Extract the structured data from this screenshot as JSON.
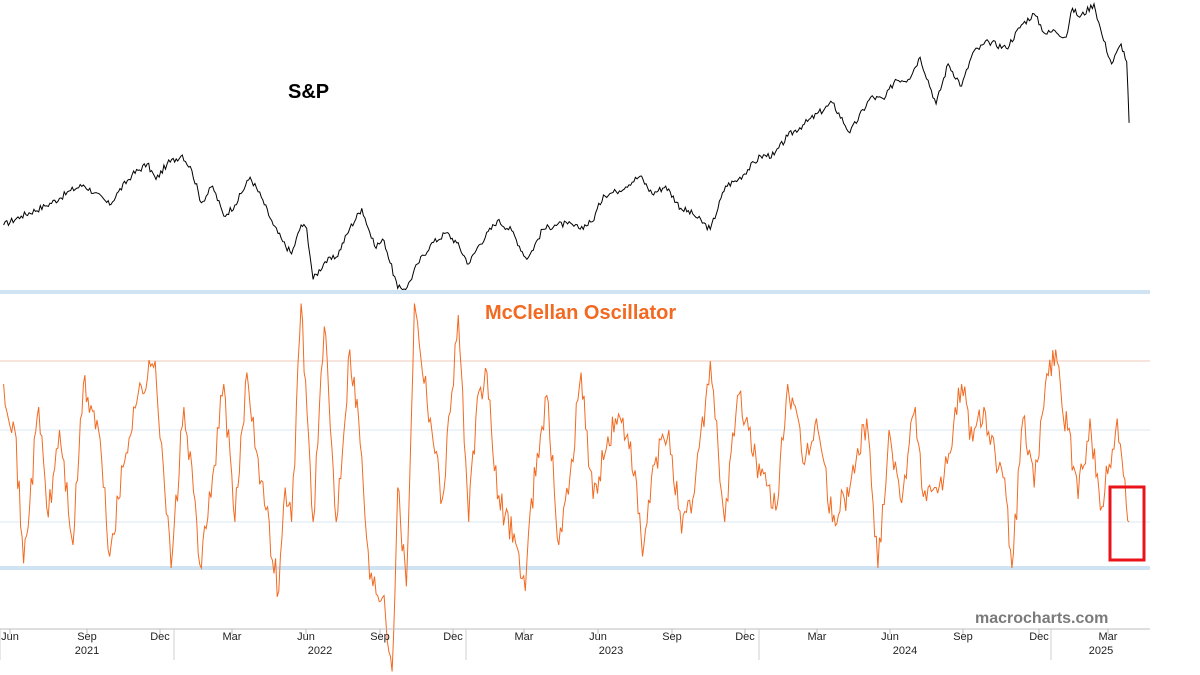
{
  "chart_data": [
    {
      "type": "line",
      "title": "S&P",
      "series": [
        {
          "name": "S&P",
          "color": "#000000",
          "x": [
            "2021-05-24",
            "2021-06-15",
            "2021-07-15",
            "2021-08-02",
            "2021-08-16",
            "2021-09-01",
            "2021-09-15",
            "2021-10-04",
            "2021-10-15",
            "2021-11-01",
            "2021-11-20",
            "2021-12-01",
            "2021-12-15",
            "2022-01-03",
            "2022-01-15",
            "2022-01-27",
            "2022-02-10",
            "2022-02-24",
            "2022-03-10",
            "2022-03-29",
            "2022-04-12",
            "2022-04-27",
            "2022-05-09",
            "2022-05-20",
            "2022-06-01",
            "2022-06-08",
            "2022-06-16",
            "2022-07-01",
            "2022-07-15",
            "2022-08-01",
            "2022-08-16",
            "2022-09-01",
            "2022-09-13",
            "2022-09-30",
            "2022-10-12",
            "2022-10-25",
            "2022-11-10",
            "2022-11-30",
            "2022-12-13",
            "2022-12-28",
            "2023-01-10",
            "2023-02-02",
            "2023-02-20",
            "2023-03-09",
            "2023-03-13",
            "2023-03-31",
            "2023-04-15",
            "2023-05-01",
            "2023-05-15",
            "2023-06-01",
            "2023-06-15",
            "2023-07-01",
            "2023-07-31",
            "2023-08-15",
            "2023-09-01",
            "2023-09-20",
            "2023-10-05",
            "2023-10-27",
            "2023-11-15",
            "2023-12-01",
            "2023-12-29",
            "2024-01-15",
            "2024-02-01",
            "2024-02-20",
            "2024-03-28",
            "2024-04-19",
            "2024-05-15",
            "2024-06-01",
            "2024-06-15",
            "2024-07-01",
            "2024-07-16",
            "2024-08-05",
            "2024-08-20",
            "2024-09-06",
            "2024-09-20",
            "2024-10-10",
            "2024-11-01",
            "2024-11-20",
            "2024-12-06",
            "2024-12-20",
            "2025-01-01",
            "2025-01-15",
            "2025-01-23",
            "2025-02-01",
            "2025-02-19",
            "2025-03-01",
            "2025-03-13",
            "2025-03-25",
            "2025-04-01",
            "2025-04-04"
          ],
          "values": [
            4150,
            4230,
            4320,
            4390,
            4460,
            4510,
            4440,
            4330,
            4450,
            4600,
            4700,
            4560,
            4700,
            4780,
            4640,
            4350,
            4500,
            4230,
            4330,
            4580,
            4400,
            4150,
            4000,
            3890,
            4150,
            4120,
            3660,
            3820,
            3860,
            4120,
            4300,
            3960,
            4010,
            3580,
            3590,
            3800,
            3970,
            4080,
            3990,
            3800,
            3970,
            4190,
            4100,
            3860,
            3860,
            4110,
            4150,
            4160,
            4120,
            4180,
            4420,
            4450,
            4590,
            4430,
            4500,
            4300,
            4250,
            4110,
            4500,
            4560,
            4770,
            4780,
            4950,
            5050,
            5250,
            4980,
            5300,
            5280,
            5460,
            5460,
            5660,
            5240,
            5600,
            5400,
            5700,
            5800,
            5740,
            5950,
            6050,
            5870,
            5900,
            5840,
            6100,
            6020,
            6140,
            5860,
            5600,
            5780,
            5620,
            5070
          ]
        }
      ]
    },
    {
      "type": "line",
      "title": "McClellan Oscillator",
      "xticks": [
        "Jun",
        "Sep",
        "Dec",
        "Mar",
        "Jun",
        "Sep",
        "Dec",
        "Mar",
        "Jun",
        "Sep",
        "Dec",
        "Mar",
        "Jun",
        "Sep",
        "Dec",
        "Mar"
      ],
      "years": [
        "2021",
        "2022",
        "2023",
        "2024",
        "2025"
      ],
      "ylim": [
        -100,
        100
      ],
      "reference_lines": [
        -50,
        -30,
        10,
        40,
        70
      ],
      "series": [
        {
          "name": "McClellan Oscillator",
          "color": "#f26a21",
          "x": [
            "2021-05-24",
            "2021-06-07",
            "2021-06-18",
            "2021-07-07",
            "2021-07-19",
            "2021-08-02",
            "2021-08-19",
            "2021-09-01",
            "2021-09-20",
            "2021-10-04",
            "2021-10-15",
            "2021-11-03",
            "2021-11-30",
            "2021-12-10",
            "2021-12-20",
            "2022-01-05",
            "2022-01-27",
            "2022-02-10",
            "2022-02-24",
            "2022-03-10",
            "2022-03-25",
            "2022-04-12",
            "2022-05-04",
            "2022-05-12",
            "2022-05-20",
            "2022-06-01",
            "2022-06-16",
            "2022-06-30",
            "2022-07-15",
            "2022-08-01",
            "2022-08-12",
            "2022-08-26",
            "2022-09-13",
            "2022-09-23",
            "2022-09-30",
            "2022-10-11",
            "2022-10-21",
            "2022-11-10",
            "2022-11-25",
            "2022-12-15",
            "2022-12-28",
            "2023-01-06",
            "2023-01-20",
            "2023-02-02",
            "2023-02-23",
            "2023-03-09",
            "2023-03-13",
            "2023-03-24",
            "2023-04-05",
            "2023-04-20",
            "2023-05-04",
            "2023-05-18",
            "2023-06-02",
            "2023-06-15",
            "2023-06-30",
            "2023-07-19",
            "2023-08-03",
            "2023-08-18",
            "2023-09-05",
            "2023-09-21",
            "2023-10-05",
            "2023-10-27",
            "2023-11-14",
            "2023-11-30",
            "2023-12-14",
            "2023-12-29",
            "2024-01-17",
            "2024-02-01",
            "2024-02-22",
            "2024-03-08",
            "2024-03-28",
            "2024-04-12",
            "2024-04-19",
            "2024-05-10",
            "2024-05-24",
            "2024-06-07",
            "2024-06-21",
            "2024-07-10",
            "2024-07-18",
            "2024-08-05",
            "2024-08-15",
            "2024-09-06",
            "2024-09-20",
            "2024-10-04",
            "2024-10-18",
            "2024-11-01",
            "2024-11-08",
            "2024-11-22",
            "2024-12-06",
            "2024-12-20",
            "2025-01-02",
            "2025-01-10",
            "2025-01-17",
            "2025-01-30",
            "2025-02-14",
            "2025-02-27",
            "2025-03-10",
            "2025-03-20",
            "2025-03-28",
            "2025-04-04"
          ],
          "values": [
            30,
            10,
            -48,
            20,
            -28,
            10,
            -40,
            30,
            10,
            -45,
            -20,
            20,
            40,
            -5,
            -50,
            20,
            -50,
            -10,
            30,
            -30,
            35,
            -12,
            -60,
            -15,
            -30,
            65,
            -30,
            55,
            -30,
            45,
            15,
            -55,
            -62,
            -95,
            -15,
            -58,
            65,
            15,
            -20,
            60,
            -30,
            15,
            35,
            -20,
            -35,
            -60,
            -35,
            0,
            25,
            -40,
            -10,
            35,
            -20,
            -3,
            15,
            5,
            -45,
            -5,
            10,
            -35,
            -20,
            40,
            -30,
            25,
            10,
            -10,
            -25,
            30,
            -5,
            15,
            -30,
            -20,
            -15,
            15,
            -50,
            10,
            -20,
            20,
            -15,
            -15,
            -10,
            30,
            5,
            20,
            0,
            -20,
            -50,
            15,
            -15,
            30,
            45,
            20,
            10,
            -20,
            15,
            -25,
            -5,
            15,
            -10,
            -30
          ]
        }
      ]
    }
  ],
  "labels": {
    "sp": "S&P",
    "mcclellan": "McClellan Oscillator",
    "watermark": "macrocharts.com"
  },
  "colors": {
    "sp_line": "#000000",
    "oscillator_line": "#f26a21",
    "oscillator_label": "#f26a21",
    "band_line": "#cfe3f3",
    "grid_light": "#d8e8f4",
    "grid_mid": "#efc9b8",
    "highlight_box": "#e8141a",
    "watermark": "#7a7a7a"
  }
}
